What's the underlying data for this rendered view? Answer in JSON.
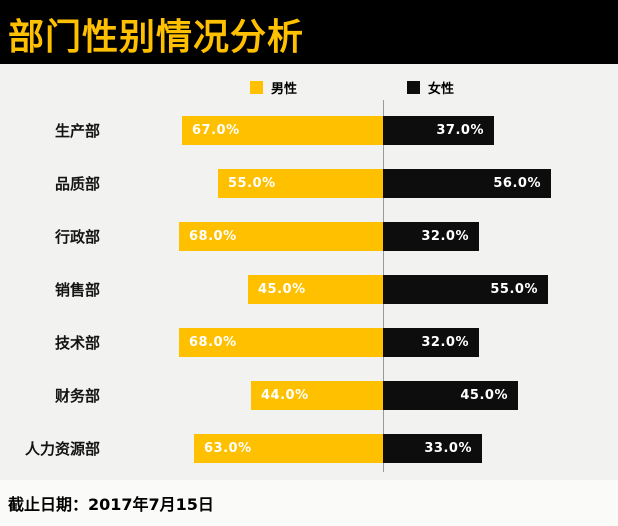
{
  "header": {
    "title": "部门性别情况分析"
  },
  "legend": {
    "male": "男性",
    "female": "女性"
  },
  "footer": {
    "note": "截止日期：2017年7月15日"
  },
  "colors": {
    "male": "#FFC000",
    "female": "#0D0D0D",
    "header_bg": "#000000",
    "title_text": "#FFC000",
    "background": "#F2F2F0",
    "axis_line": "#9A9A9A"
  },
  "chart_data": {
    "type": "bar",
    "variant": "bidirectional-horizontal",
    "title": "部门性别情况分析",
    "categories": [
      "生产部",
      "品质部",
      "行政部",
      "销售部",
      "技术部",
      "财务部",
      "人力资源部"
    ],
    "series": [
      {
        "name": "男性",
        "side": "left",
        "color": "#FFC000",
        "values": [
          67.0,
          55.0,
          68.0,
          45.0,
          68.0,
          44.0,
          63.0
        ]
      },
      {
        "name": "女性",
        "side": "right",
        "color": "#0D0D0D",
        "values": [
          37.0,
          56.0,
          32.0,
          55.0,
          32.0,
          45.0,
          33.0
        ]
      }
    ],
    "value_suffix": "%",
    "value_decimals": 1,
    "xlim": [
      0,
      100
    ],
    "grid": false,
    "legend_position": "top"
  }
}
